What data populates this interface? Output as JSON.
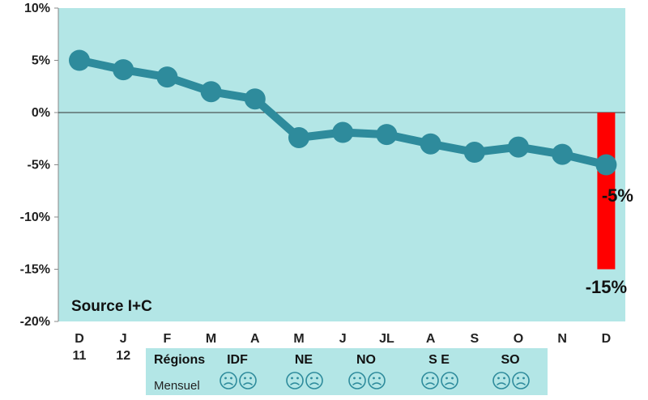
{
  "chart_data": {
    "type": "line",
    "x_top": [
      "D",
      "J",
      "F",
      "M",
      "A",
      "M",
      "J",
      "JL",
      "A",
      "S",
      "O",
      "N",
      "D"
    ],
    "x_bottom": [
      "11",
      "12",
      "",
      "",
      "",
      "",
      "",
      "",
      "",
      "",
      "",
      "",
      ""
    ],
    "y": [
      5.0,
      4.1,
      3.4,
      2.0,
      1.3,
      -2.4,
      -1.9,
      -2.1,
      -3.0,
      -3.8,
      -3.3,
      -4.0,
      -5.0
    ],
    "y_ticks": [
      "10%",
      "5%",
      "0%",
      "-5%",
      "-10%",
      "-15%",
      "-20%"
    ],
    "y_tick_values": [
      10,
      5,
      0,
      -5,
      -10,
      -15,
      -20
    ],
    "ylim": [
      -20,
      10
    ],
    "bar": {
      "category_index": 12,
      "value": -15,
      "label": "-15%",
      "color": "#ff0000"
    },
    "last_point_label": "-5%",
    "annotation": "Source I+C",
    "line_color": "#2e8b9c",
    "plot_background": "#b3e6e6"
  },
  "legend_table": {
    "row1_label": "Régions",
    "row2_label": "Mensuel",
    "regions": [
      "IDF",
      "NE",
      "NO",
      "S E",
      "SO"
    ],
    "icon": "sad-face-icon",
    "icons_per_region": 2,
    "background": "#b3e6e6"
  }
}
